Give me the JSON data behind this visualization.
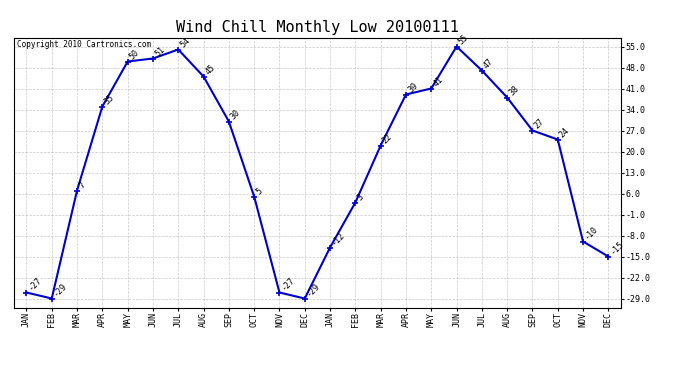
{
  "title": "Wind Chill Monthly Low 20100111",
  "copyright": "Copyright 2010 Cartronics.com",
  "months": [
    "JAN",
    "FEB",
    "MAR",
    "APR",
    "MAY",
    "JUN",
    "JUL",
    "AUG",
    "SEP",
    "OCT",
    "NOV",
    "DEC",
    "JAN",
    "FEB",
    "MAR",
    "APR",
    "MAY",
    "JUN",
    "JUL",
    "AUG",
    "SEP",
    "OCT",
    "NOV",
    "DEC"
  ],
  "values": [
    -27,
    -29,
    7,
    35,
    50,
    51,
    54,
    45,
    30,
    5,
    -27,
    -29,
    -12,
    3,
    22,
    39,
    41,
    55,
    47,
    38,
    27,
    24,
    -10,
    -15
  ],
  "ylim_min": -32,
  "ylim_max": 58,
  "yticks": [
    55.0,
    48.0,
    41.0,
    34.0,
    27.0,
    20.0,
    13.0,
    6.0,
    -1.0,
    -8.0,
    -15.0,
    -22.0,
    -29.0
  ],
  "line_color": "#0000cc",
  "marker": "+",
  "marker_size": 5,
  "marker_lw": 1.2,
  "background_color": "#ffffff",
  "grid_color": "#bbbbbb",
  "title_fontsize": 11,
  "label_fontsize": 6,
  "annotation_fontsize": 6,
  "line_width": 1.5
}
